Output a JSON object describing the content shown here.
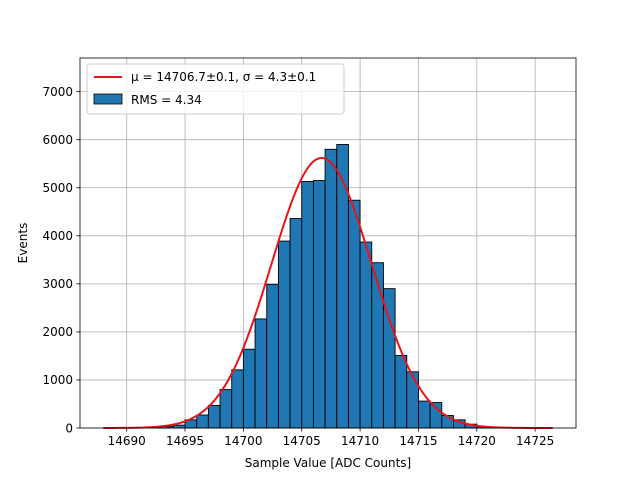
{
  "chart_data": {
    "type": "bar",
    "subtype": "histogram",
    "title": "",
    "xlabel": "Sample Value [ADC Counts]",
    "ylabel": "Events",
    "xlim": [
      14686,
      14728.5
    ],
    "ylim": [
      0,
      7700
    ],
    "grid": true,
    "legend_position": "top-left",
    "x_ticks": [
      14690,
      14695,
      14700,
      14705,
      14710,
      14715,
      14720,
      14725
    ],
    "y_ticks": [
      0,
      1000,
      2000,
      3000,
      4000,
      5000,
      6000,
      7000
    ],
    "bins": {
      "edges": [
        14692,
        14693,
        14694,
        14695,
        14696,
        14697,
        14698,
        14699,
        14700,
        14701,
        14702,
        14703,
        14704,
        14705,
        14706,
        14707,
        14708,
        14709,
        14710,
        14711,
        14712,
        14713,
        14714,
        14715,
        14716,
        14717,
        14718,
        14719,
        14720,
        14721,
        14722
      ],
      "counts": [
        10,
        30,
        60,
        170,
        270,
        470,
        800,
        1210,
        1640,
        2270,
        2990,
        3890,
        4360,
        5130,
        5150,
        5800,
        5900,
        4740,
        3870,
        3440,
        2900,
        1510,
        1170,
        560,
        530,
        260,
        170,
        80,
        30,
        10
      ]
    },
    "series": [
      {
        "name": "RMS = 4.34",
        "kind": "histogram",
        "color": "#1f77b4",
        "edgecolor": "#000000"
      },
      {
        "name": "$\\mu = 14706.7 \\pm 0.1, \\sigma = 4.3 \\pm 0.1$",
        "kind": "gaussian-fit",
        "color": "#e8141a",
        "mu": 14706.7,
        "sigma": 4.3,
        "amplitude": 5620,
        "x_range": [
          14688,
          14726.5
        ]
      }
    ],
    "legend": {
      "fit_label_display": "μ = 14706.7±0.1, σ = 4.3±0.1",
      "hist_label": "RMS = 4.34"
    }
  }
}
